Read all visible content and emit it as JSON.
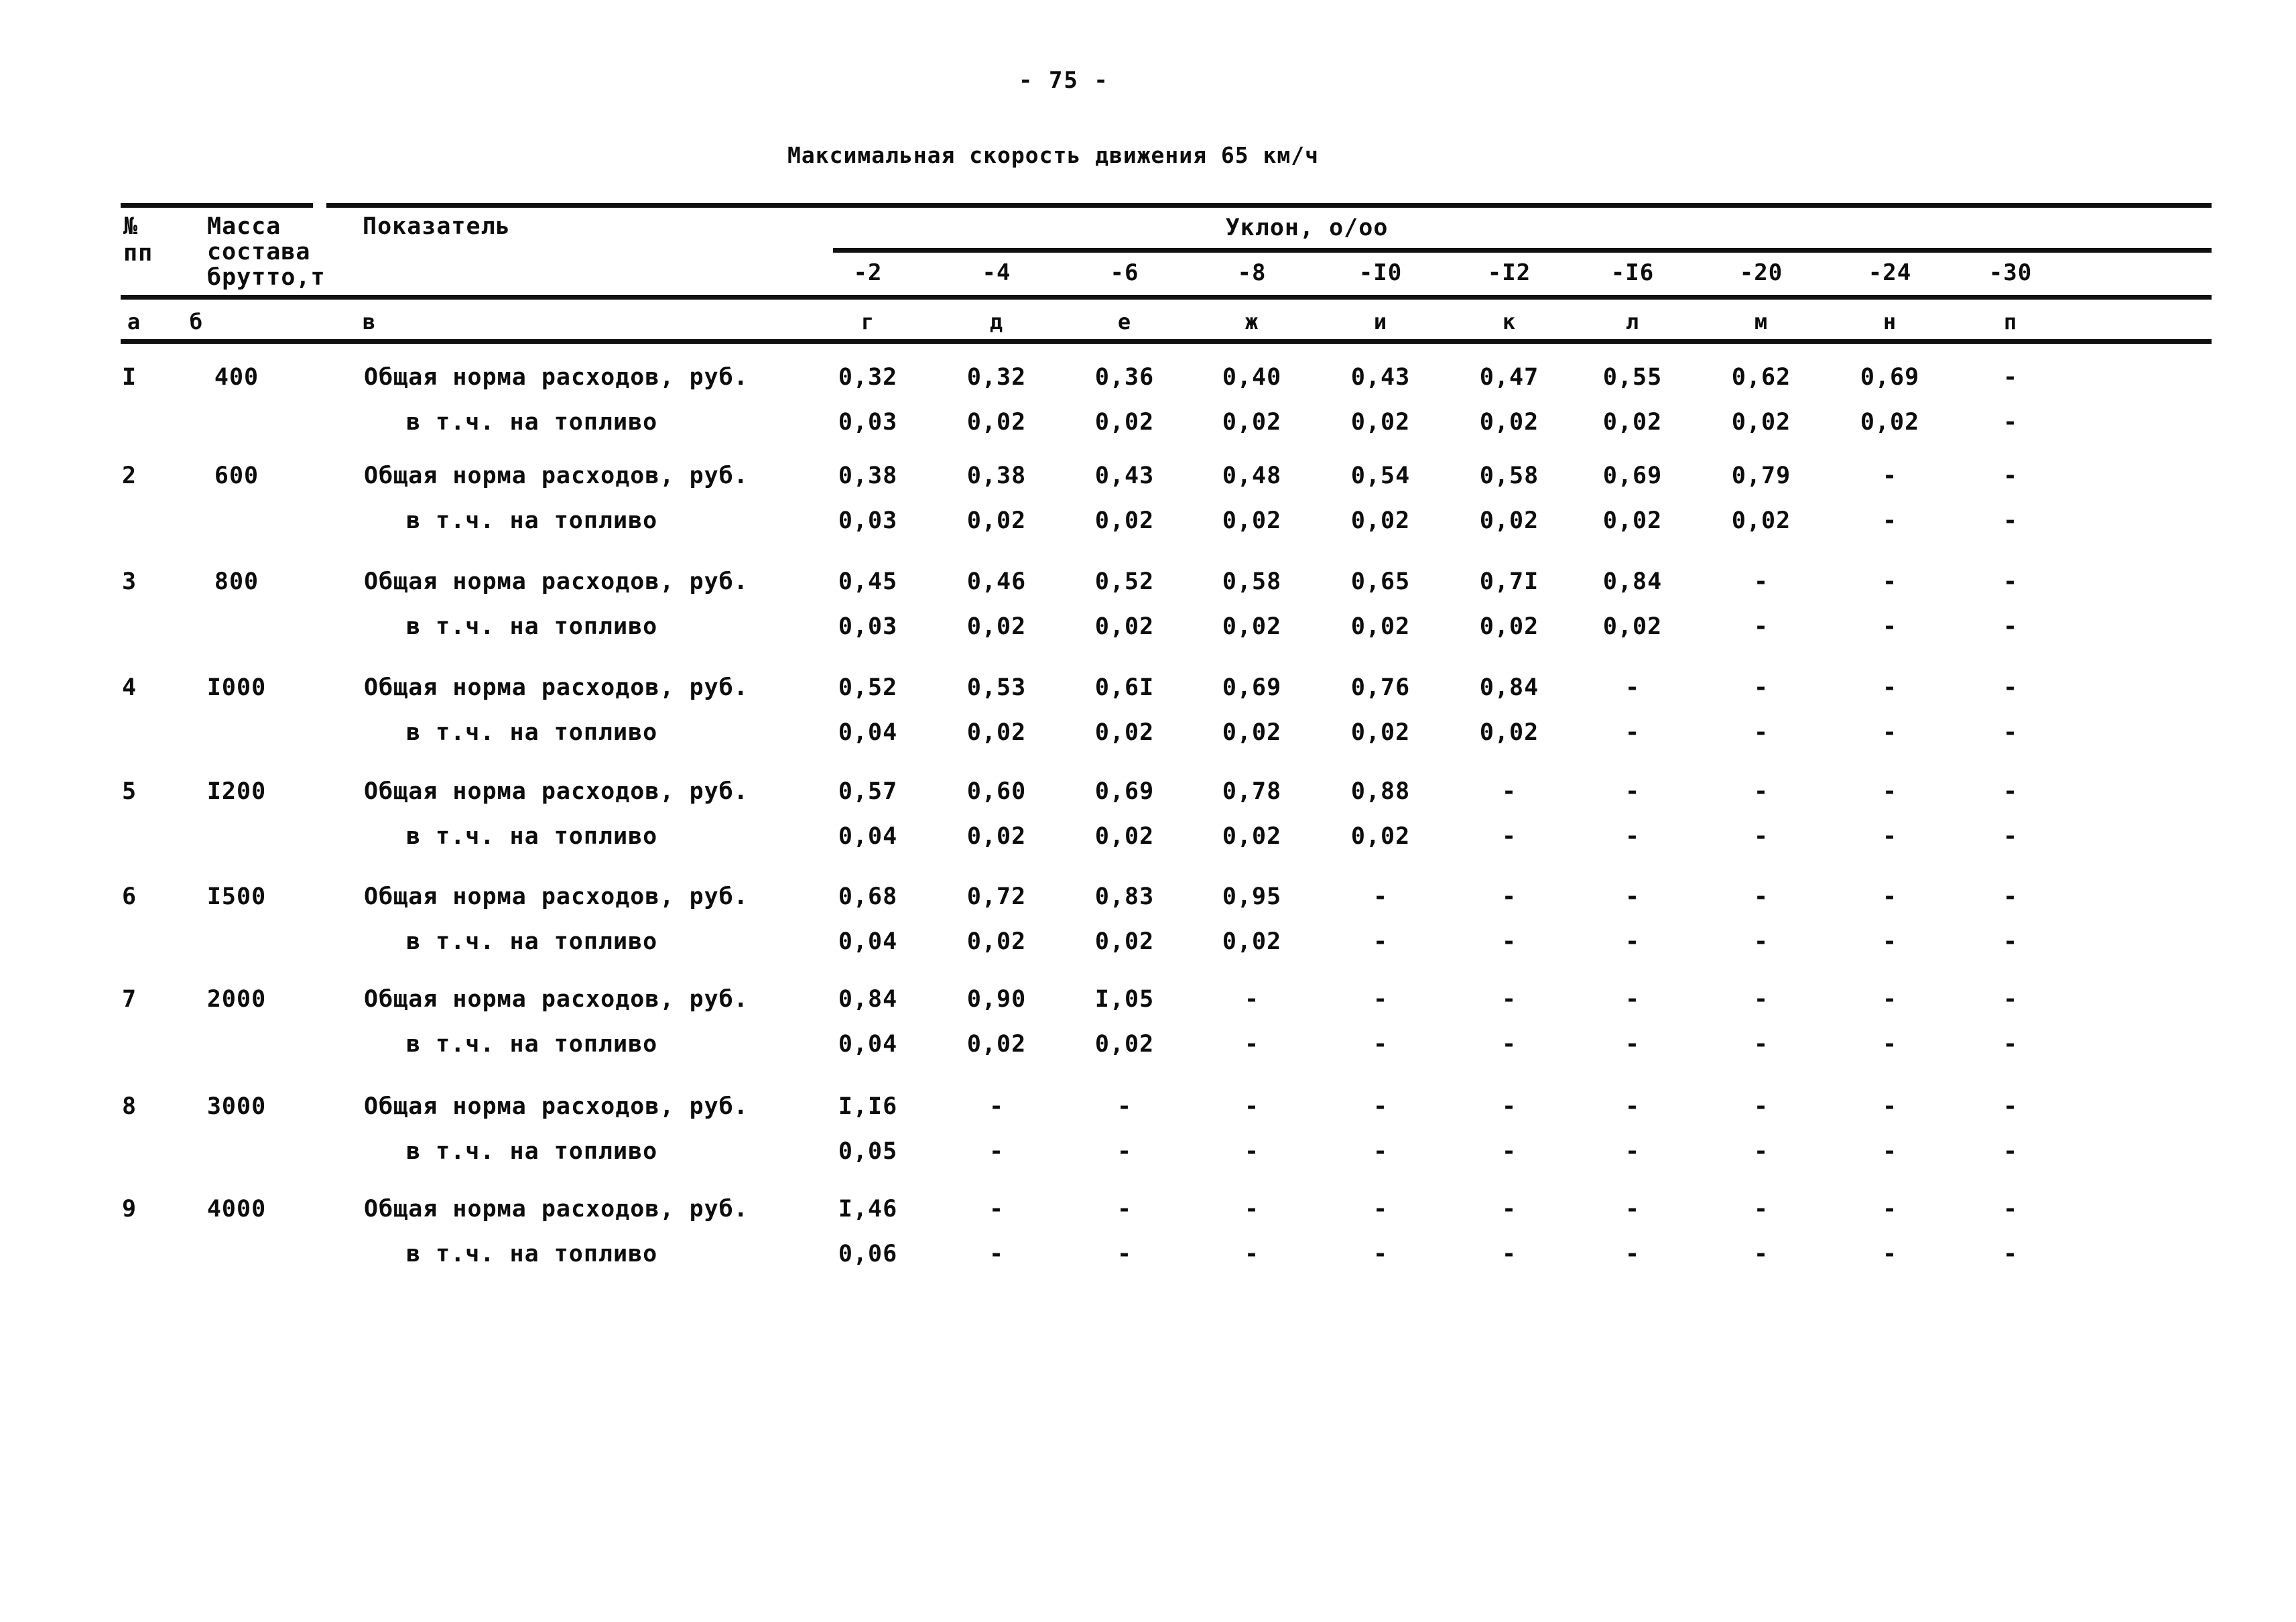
{
  "page": {
    "number_label": "-  75  -",
    "title": "Максимальная скорость движения 65 км/ч"
  },
  "colors": {
    "ink": "#0d0d0d",
    "paper": "#ffffff"
  },
  "table": {
    "header": {
      "num_line1": "№",
      "num_line2": "пп",
      "mass_lines": [
        "Масса",
        "состава",
        "брутто,т"
      ],
      "indicator": "Показатель",
      "gradient_group": "Уклон, о/оо",
      "gradients": [
        "-2",
        "-4",
        "-6",
        "-8",
        "-I0",
        "-I2",
        "-I6",
        "-20",
        "-24",
        "-30"
      ]
    },
    "letters": [
      "а",
      "б",
      "в",
      "г",
      "д",
      "е",
      "ж",
      "и",
      "к",
      "л",
      "м",
      "н",
      "п"
    ],
    "rows": [
      {
        "num": "I",
        "mass": "400",
        "label_total": "Общая норма расходов, руб.",
        "label_fuel": "в т.ч. на топливо",
        "total": [
          "0,32",
          "0,32",
          "0,36",
          "0,40",
          "0,43",
          "0,47",
          "0,55",
          "0,62",
          "0,69",
          "-"
        ],
        "fuel": [
          "0,03",
          "0,02",
          "0,02",
          "0,02",
          "0,02",
          "0,02",
          "0,02",
          "0,02",
          "0,02",
          "-"
        ]
      },
      {
        "num": "2",
        "mass": "600",
        "label_total": "Общая норма расходов, руб.",
        "label_fuel": "в т.ч. на топливо",
        "total": [
          "0,38",
          "0,38",
          "0,43",
          "0,48",
          "0,54",
          "0,58",
          "0,69",
          "0,79",
          "-",
          "-"
        ],
        "fuel": [
          "0,03",
          "0,02",
          "0,02",
          "0,02",
          "0,02",
          "0,02",
          "0,02",
          "0,02",
          "-",
          "-"
        ]
      },
      {
        "num": "3",
        "mass": "800",
        "label_total": "Общая норма расходов, руб.",
        "label_fuel": "в т.ч. на топливо",
        "total": [
          "0,45",
          "0,46",
          "0,52",
          "0,58",
          "0,65",
          "0,7I",
          "0,84",
          "-",
          "-",
          "-"
        ],
        "fuel": [
          "0,03",
          "0,02",
          "0,02",
          "0,02",
          "0,02",
          "0,02",
          "0,02",
          "-",
          "-",
          "-"
        ]
      },
      {
        "num": "4",
        "mass": "I000",
        "label_total": "Общая норма расходов, руб.",
        "label_fuel": "в т.ч. на топливо",
        "total": [
          "0,52",
          "0,53",
          "0,6I",
          "0,69",
          "0,76",
          "0,84",
          "-",
          "-",
          "-",
          "-"
        ],
        "fuel": [
          "0,04",
          "0,02",
          "0,02",
          "0,02",
          "0,02",
          "0,02",
          "-",
          "-",
          "-",
          "-"
        ]
      },
      {
        "num": "5",
        "mass": "I200",
        "label_total": "Общая норма расходов, руб.",
        "label_fuel": "в т.ч. на топливо",
        "total": [
          "0,57",
          "0,60",
          "0,69",
          "0,78",
          "0,88",
          "-",
          "-",
          "-",
          "-",
          "-"
        ],
        "fuel": [
          "0,04",
          "0,02",
          "0,02",
          "0,02",
          "0,02",
          "-",
          "-",
          "-",
          "-",
          "-"
        ]
      },
      {
        "num": "6",
        "mass": "I500",
        "label_total": "Общая норма расходов, руб.",
        "label_fuel": "в т.ч. на топливо",
        "total": [
          "0,68",
          "0,72",
          "0,83",
          "0,95",
          "-",
          "-",
          "-",
          "-",
          "-",
          "-"
        ],
        "fuel": [
          "0,04",
          "0,02",
          "0,02",
          "0,02",
          "-",
          "-",
          "-",
          "-",
          "-",
          "-"
        ]
      },
      {
        "num": "7",
        "mass": "2000",
        "label_total": "Общая норма расходов, руб.",
        "label_fuel": "в т.ч. на топливо",
        "total": [
          "0,84",
          "0,90",
          "I,05",
          "-",
          "-",
          "-",
          "-",
          "-",
          "-",
          "-"
        ],
        "fuel": [
          "0,04",
          "0,02",
          "0,02",
          "-",
          "-",
          "-",
          "-",
          "-",
          "-",
          "-"
        ]
      },
      {
        "num": "8",
        "mass": "3000",
        "label_total": "Общая норма расходов, руб.",
        "label_fuel": "в т.ч. на топливо",
        "total": [
          "I,I6",
          "-",
          "-",
          "-",
          "-",
          "-",
          "-",
          "-",
          "-",
          "-"
        ],
        "fuel": [
          "0,05",
          "-",
          "-",
          "-",
          "-",
          "-",
          "-",
          "-",
          "-",
          "-"
        ]
      },
      {
        "num": "9",
        "mass": "4000",
        "label_total": "Общая норма расходов, руб.",
        "label_fuel": "в т.ч. на топливо",
        "total": [
          "I,46",
          "-",
          "-",
          "-",
          "-",
          "-",
          "-",
          "-",
          "-",
          "-"
        ],
        "fuel": [
          "0,06",
          "-",
          "-",
          "-",
          "-",
          "-",
          "-",
          "-",
          "-",
          "-"
        ]
      }
    ]
  }
}
